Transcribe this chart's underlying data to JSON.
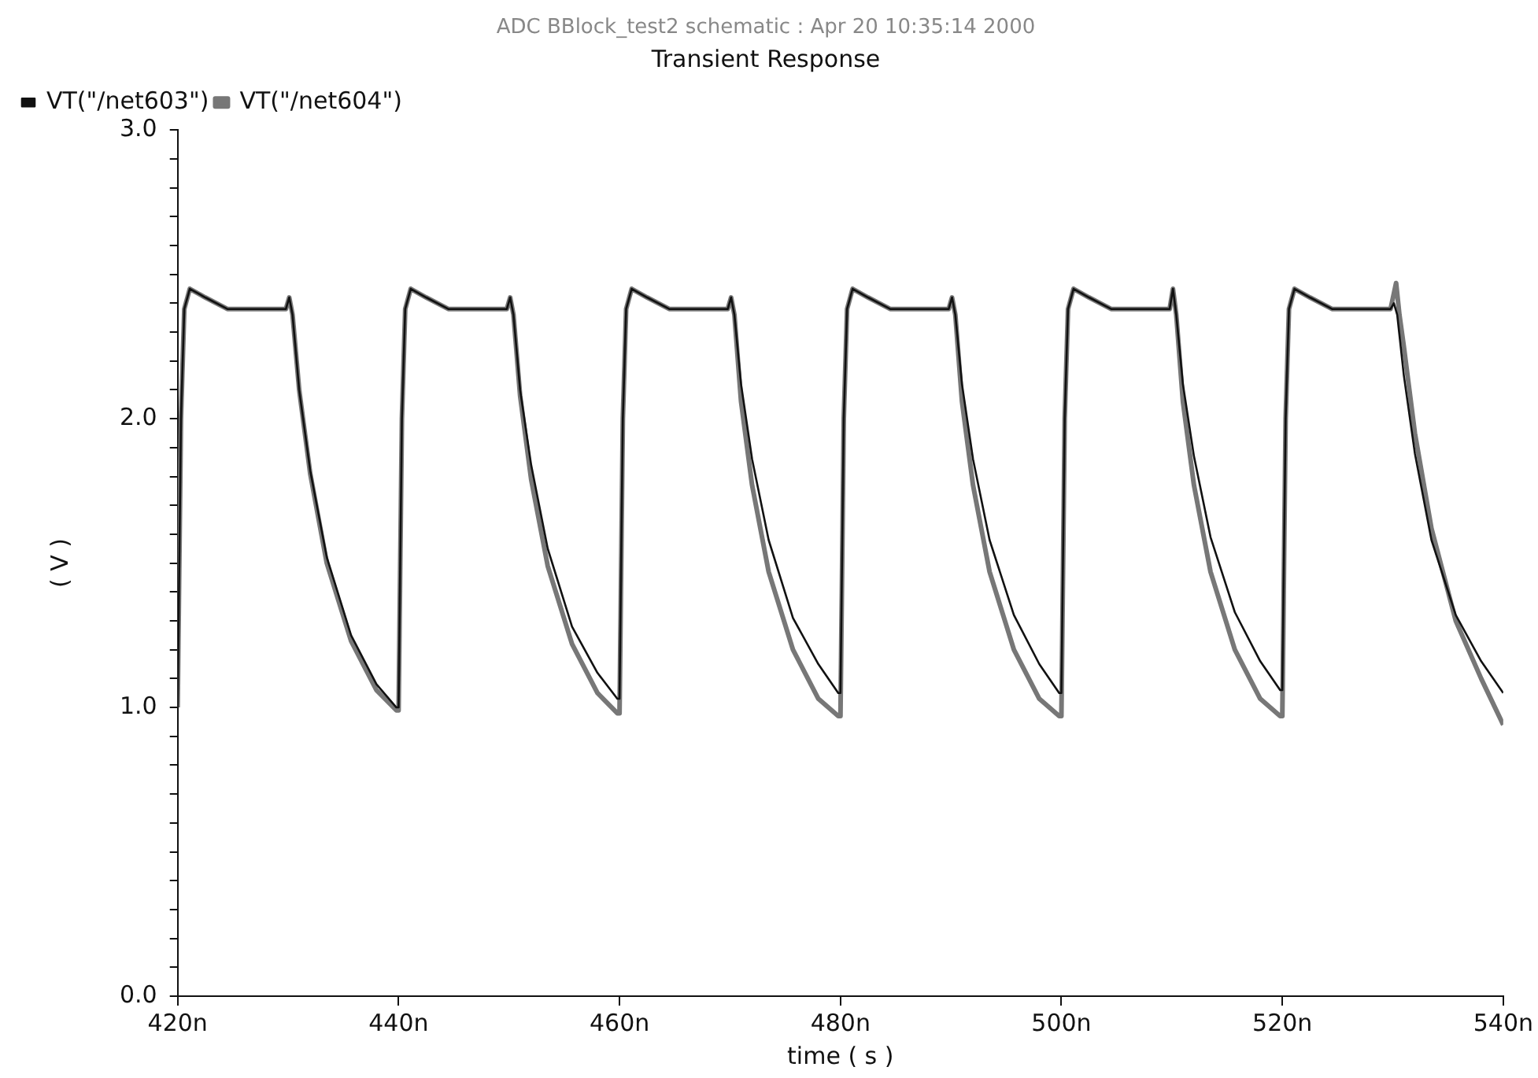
{
  "chart_data": {
    "type": "line",
    "title": "ADC BBlock_test2 schematic : Apr 20 10:35:14 2000",
    "subtitle": "Transient Response",
    "xlabel": "time ( s )",
    "ylabel": "( V )",
    "xlim": [
      420,
      540
    ],
    "xticks": [
      {
        "value": 420,
        "label": "420n"
      },
      {
        "value": 440,
        "label": "440n"
      },
      {
        "value": 460,
        "label": "460n"
      },
      {
        "value": 480,
        "label": "480n"
      },
      {
        "value": 500,
        "label": "500n"
      },
      {
        "value": 520,
        "label": "520n"
      },
      {
        "value": 540,
        "label": "540n"
      }
    ],
    "ylim": [
      0,
      3
    ],
    "yticks": [
      {
        "value": 0,
        "label": "0.0"
      },
      {
        "value": 0.1,
        "label": null
      },
      {
        "value": 0.2,
        "label": null
      },
      {
        "value": 0.3,
        "label": null
      },
      {
        "value": 0.4,
        "label": null
      },
      {
        "value": 0.5,
        "label": null
      },
      {
        "value": 0.6,
        "label": null
      },
      {
        "value": 0.7,
        "label": null
      },
      {
        "value": 0.8,
        "label": null
      },
      {
        "value": 0.9,
        "label": null
      },
      {
        "value": 1,
        "label": "1.0"
      },
      {
        "value": 1.1,
        "label": null
      },
      {
        "value": 1.2,
        "label": null
      },
      {
        "value": 1.3,
        "label": null
      },
      {
        "value": 1.4,
        "label": null
      },
      {
        "value": 1.5,
        "label": null
      },
      {
        "value": 1.6,
        "label": null
      },
      {
        "value": 1.7,
        "label": null
      },
      {
        "value": 1.8,
        "label": null
      },
      {
        "value": 1.9,
        "label": null
      },
      {
        "value": 2,
        "label": "2.0"
      },
      {
        "value": 2.1,
        "label": null
      },
      {
        "value": 2.2,
        "label": null
      },
      {
        "value": 2.3,
        "label": null
      },
      {
        "value": 2.4,
        "label": null
      },
      {
        "value": 2.5,
        "label": null
      },
      {
        "value": 2.6,
        "label": null
      },
      {
        "value": 2.7,
        "label": null
      },
      {
        "value": 2.8,
        "label": null
      },
      {
        "value": 2.9,
        "label": null
      },
      {
        "value": 3,
        "label": "3.0"
      }
    ],
    "grid": false,
    "legend": "top left",
    "marker": "none",
    "line_style": "solid",
    "series": [
      {
        "name": "VT(\"/net603\")",
        "color": "#111111",
        "x": [
          420,
          420.3,
          420.6,
          421.1,
          422.5,
          424.5,
          429.8,
          430.1,
          430.4,
          431,
          432,
          433.5,
          435.7,
          438,
          439.8,
          440,
          440.3,
          440.6,
          441.1,
          442.5,
          444.5,
          449.8,
          450.1,
          450.4,
          451,
          452,
          453.5,
          455.7,
          458,
          459.8,
          460,
          460.3,
          460.6,
          461.1,
          462.5,
          464.5,
          469.8,
          470.1,
          470.4,
          471,
          472,
          473.5,
          475.7,
          478,
          479.8,
          480,
          480.3,
          480.6,
          481.1,
          482.5,
          484.5,
          489.8,
          490.1,
          490.4,
          491,
          492,
          493.5,
          495.7,
          498,
          499.8,
          500,
          500.3,
          500.6,
          501.1,
          502.5,
          504.5,
          509.8,
          510.1,
          510.4,
          511,
          512,
          513.5,
          515.7,
          518,
          519.8,
          520,
          520.3,
          520.6,
          521.1,
          522.5,
          524.5,
          529.8,
          530.1,
          530.4,
          531,
          532,
          533.5,
          535.7,
          538,
          540
        ],
        "values": [
          1.0,
          2.0,
          2.38,
          2.45,
          2.42,
          2.38,
          2.38,
          2.42,
          2.36,
          2.1,
          1.82,
          1.52,
          1.25,
          1.08,
          1.0,
          1.0,
          2.0,
          2.38,
          2.45,
          2.42,
          2.38,
          2.38,
          2.42,
          2.36,
          2.1,
          1.84,
          1.55,
          1.28,
          1.12,
          1.03,
          1.03,
          2.0,
          2.38,
          2.45,
          2.42,
          2.38,
          2.38,
          2.42,
          2.36,
          2.12,
          1.86,
          1.58,
          1.31,
          1.15,
          1.05,
          1.05,
          2.0,
          2.38,
          2.45,
          2.42,
          2.38,
          2.38,
          2.42,
          2.36,
          2.12,
          1.86,
          1.58,
          1.32,
          1.15,
          1.05,
          1.05,
          2.0,
          2.38,
          2.45,
          2.42,
          2.38,
          2.38,
          2.45,
          2.36,
          2.12,
          1.87,
          1.59,
          1.33,
          1.16,
          1.06,
          1.06,
          2.0,
          2.38,
          2.45,
          2.42,
          2.38,
          2.38,
          2.4,
          2.36,
          2.15,
          1.88,
          1.58,
          1.32,
          1.16,
          1.05
        ]
      },
      {
        "name": "VT(\"/net604\")",
        "color": "#777777",
        "x": [
          420,
          420.3,
          420.6,
          421.1,
          422.5,
          424.5,
          429.8,
          430.1,
          430.4,
          431,
          432,
          433.5,
          435.7,
          438,
          439.8,
          440,
          440.3,
          440.6,
          441.1,
          442.5,
          444.5,
          449.8,
          450.1,
          450.4,
          451,
          452,
          453.5,
          455.7,
          458,
          459.8,
          460,
          460.3,
          460.6,
          461.1,
          462.5,
          464.5,
          469.8,
          470.1,
          470.4,
          471,
          472,
          473.5,
          475.7,
          478,
          479.8,
          480,
          480.3,
          480.6,
          481.1,
          482.5,
          484.5,
          489.8,
          490.1,
          490.4,
          491,
          492,
          493.5,
          495.7,
          498,
          499.8,
          500,
          500.3,
          500.6,
          501.1,
          502.5,
          504.5,
          509.8,
          510.1,
          510.4,
          511,
          512,
          513.5,
          515.7,
          518,
          519.8,
          520,
          520.3,
          520.6,
          521.1,
          522.5,
          524.5,
          529.8,
          530.3,
          530.6,
          531,
          532,
          533.5,
          535.7,
          538,
          540
        ],
        "values": [
          1.0,
          2.0,
          2.38,
          2.45,
          2.42,
          2.38,
          2.38,
          2.42,
          2.36,
          2.1,
          1.81,
          1.5,
          1.23,
          1.06,
          0.99,
          0.99,
          2.0,
          2.38,
          2.45,
          2.42,
          2.38,
          2.38,
          2.42,
          2.36,
          2.08,
          1.79,
          1.49,
          1.22,
          1.05,
          0.98,
          0.98,
          2.0,
          2.38,
          2.45,
          2.42,
          2.38,
          2.38,
          2.42,
          2.36,
          2.06,
          1.77,
          1.47,
          1.2,
          1.03,
          0.97,
          0.97,
          2.0,
          2.38,
          2.45,
          2.42,
          2.38,
          2.38,
          2.42,
          2.36,
          2.06,
          1.77,
          1.47,
          1.2,
          1.03,
          0.97,
          0.97,
          2.0,
          2.38,
          2.45,
          2.42,
          2.38,
          2.38,
          2.45,
          2.36,
          2.06,
          1.77,
          1.47,
          1.2,
          1.03,
          0.97,
          0.97,
          2.0,
          2.38,
          2.45,
          2.42,
          2.38,
          2.38,
          2.47,
          2.36,
          2.25,
          1.95,
          1.62,
          1.3,
          1.1,
          0.94
        ]
      }
    ]
  }
}
